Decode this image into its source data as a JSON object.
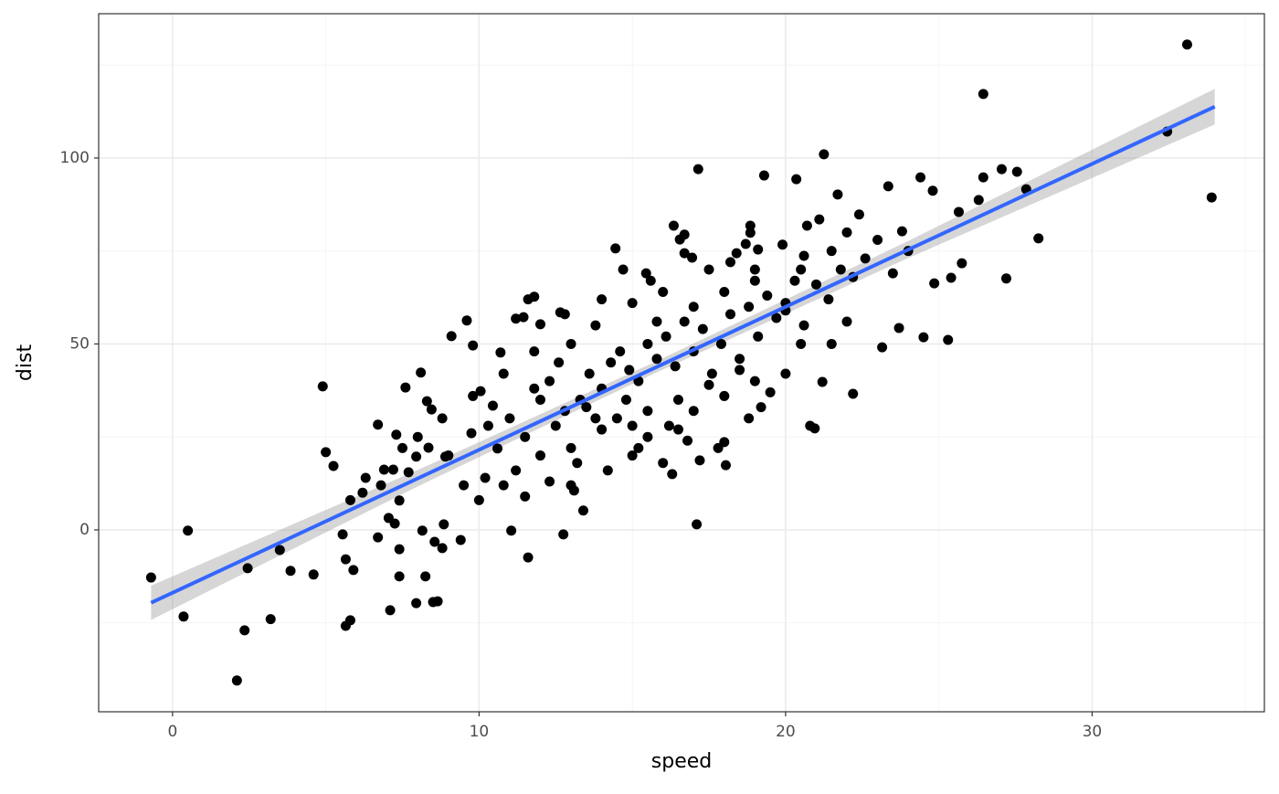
{
  "chart_data": {
    "type": "scatter",
    "x_label": "speed",
    "y_label": "dist",
    "x": [
      -0.7,
      0.36,
      0.5,
      2.1,
      2.35,
      2.45,
      3.2,
      3.5,
      3.85,
      4.6,
      4.9,
      5.0,
      5.25,
      5.55,
      5.65,
      5.65,
      5.8,
      5.9,
      6.3,
      6.7,
      6.7,
      6.9,
      7.05,
      7.1,
      7.2,
      7.25,
      7.3,
      7.4,
      7.4,
      7.4,
      7.6,
      7.7,
      7.95,
      7.95,
      8.1,
      8.15,
      8.25,
      8.3,
      8.35,
      8.45,
      8.5,
      8.55,
      8.65,
      8.8,
      8.85,
      8.9,
      9.1,
      9.4,
      9.6,
      9.8,
      9.75,
      10.05,
      10.2,
      10.45,
      10.7,
      11.05,
      11.6,
      11.6,
      11.8,
      11.2,
      11.45,
      12.0,
      12.65,
      12.75,
      13.1,
      13.4,
      14.45,
      14.7,
      15.45,
      15.6,
      16.35,
      16.55,
      16.7,
      16.7,
      16.95,
      17.15,
      17.1,
      17.2,
      18.05,
      18.0,
      18.4,
      18.7,
      18.85,
      18.85,
      19.1,
      19.3,
      19.9,
      20.35,
      20.6,
      20.7,
      20.8,
      20.95,
      21.1,
      21.25,
      21.2,
      21.7,
      22.2,
      22.4,
      23.15,
      23.35,
      23.8,
      23.7,
      24.4,
      24.5,
      24.8,
      24.85,
      25.3,
      25.4,
      25.65,
      25.75,
      26.3,
      26.45,
      26.45,
      27.05,
      27.2,
      27.55,
      27.85,
      28.25,
      32.45,
      33.1,
      33.9,
      10.6,
      11.0,
      11.5,
      12.0,
      12.3,
      12.6,
      13.0,
      13.3,
      13.6,
      14.0,
      14.3,
      14.6,
      14.9,
      15.2,
      15.5,
      15.8,
      16.1,
      16.4,
      16.7,
      17.0,
      17.3,
      17.6,
      17.9,
      18.2,
      18.5,
      18.8,
      19.1,
      19.4,
      19.7,
      20.0,
      20.3,
      20.6,
      21.0,
      21.4,
      21.8,
      22.2,
      22.6,
      23.0,
      23.5,
      24.0,
      10.3,
      11.2,
      12.0,
      12.5,
      13.0,
      13.5,
      14.0,
      14.5,
      15.0,
      15.5,
      16.0,
      16.5,
      17.0,
      17.5,
      18.0,
      18.5,
      19.0,
      19.5,
      20.0,
      9.5,
      9.0,
      10.0,
      10.8,
      11.5,
      12.3,
      13.2,
      14.2,
      15.2,
      16.3,
      16.8,
      14.0,
      15.0,
      16.0,
      17.0,
      18.0,
      19.0,
      20.0,
      21.5,
      22.0,
      15.8,
      13.8,
      12.8,
      11.8,
      10.8,
      9.8,
      8.8,
      8.0,
      7.5,
      6.8,
      6.2,
      5.8,
      17.5,
      18.2,
      19.0,
      20.5,
      16.5,
      15.5,
      14.8,
      13.8,
      12.8,
      11.8,
      18.8,
      19.2,
      20.5,
      21.5,
      22.0,
      17.8,
      16.2,
      15.0,
      13.0
    ],
    "values": [
      -12.8,
      -23.3,
      -0.2,
      -40.5,
      -27,
      -10.3,
      -24,
      -5.4,
      -11,
      -12,
      38.6,
      20.9,
      17.2,
      -1.2,
      -7.9,
      -25.8,
      -24.3,
      -10.8,
      14,
      -2,
      28.3,
      16.2,
      3.2,
      -21.6,
      16.2,
      1.7,
      25.6,
      -12.5,
      -5.2,
      7.9,
      38.3,
      15.5,
      -19.7,
      19.7,
      42.3,
      -0.2,
      -12.5,
      34.6,
      22.1,
      32.4,
      -19.4,
      -3.2,
      -19.2,
      -4.9,
      1.5,
      19.7,
      52.1,
      -2.7,
      56.3,
      49.6,
      26,
      37.3,
      14,
      33.4,
      47.7,
      -0.2,
      -7.4,
      62,
      62.7,
      56.8,
      57.2,
      55.3,
      58.5,
      -1.2,
      10.6,
      5.2,
      75.7,
      70,
      69,
      67,
      81.8,
      78.1,
      79.4,
      74.4,
      73.2,
      97,
      1.5,
      18.7,
      17.4,
      23.6,
      74.4,
      76.9,
      81.8,
      79.9,
      75.4,
      95.3,
      76.7,
      94.3,
      73.7,
      81.8,
      28,
      27.3,
      83.5,
      101,
      39.8,
      90.2,
      36.6,
      84.8,
      49.1,
      92.4,
      80.3,
      54.3,
      94.8,
      51.8,
      91.2,
      66.3,
      51.1,
      67.8,
      85.5,
      71.7,
      88.7,
      117.2,
      94.8,
      97,
      67.6,
      96.3,
      91.6,
      78.4,
      107.1,
      130.5,
      89.4,
      21.9,
      30,
      25,
      35,
      40,
      45,
      50,
      35,
      42,
      38,
      45,
      48,
      43,
      40,
      50,
      46,
      52,
      44,
      56,
      48,
      54,
      42,
      50,
      58,
      46,
      60,
      52,
      63,
      57,
      61,
      67,
      55,
      66,
      62,
      70,
      68,
      73,
      78,
      69,
      75,
      28,
      16,
      20,
      28,
      22,
      33,
      27,
      30,
      20,
      25,
      18,
      27,
      32,
      39,
      36,
      43,
      40,
      37,
      42,
      12,
      20,
      8,
      12,
      9,
      13,
      18,
      16,
      22,
      15,
      24,
      62,
      61,
      64,
      60,
      64,
      67,
      59,
      75,
      80,
      56,
      55,
      58,
      48,
      42,
      36,
      30,
      25,
      22,
      12,
      10,
      8,
      70,
      72,
      70,
      70,
      35,
      32,
      35,
      30,
      32,
      38,
      30,
      33,
      50,
      50,
      56,
      22,
      28,
      28,
      12
    ],
    "color": "#000000",
    "fit": {
      "x": [
        -0.7,
        34
      ],
      "values": [
        -19.6,
        113.8
      ],
      "color": "#3366ff"
    },
    "band": {
      "x": [
        -0.7,
        8,
        15.7,
        24,
        34
      ],
      "lower": [
        -24.2,
        11.7,
        42.0,
        73.1,
        109.0
      ],
      "upper": [
        -15.0,
        16.1,
        45.0,
        77.7,
        118.6
      ],
      "color": "#999999"
    },
    "xlim": [
      -2.41,
      35.62
    ],
    "ylim": [
      -48.9,
      138.8
    ],
    "xticks": [
      0,
      10,
      20,
      30
    ],
    "yticks": [
      0,
      50,
      100
    ],
    "grid": true
  }
}
